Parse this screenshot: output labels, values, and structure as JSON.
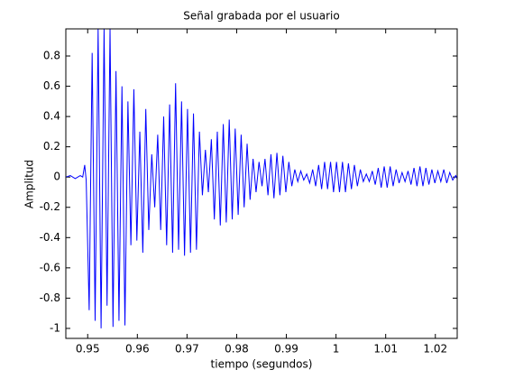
{
  "chart_data": {
    "type": "line",
    "title": "Señal grabada por el usuario",
    "xlabel": "tiempo (segundos)",
    "ylabel": "Amplitud",
    "color": "#0000ff",
    "grid": false,
    "xlim": [
      0.9456,
      1.0244
    ],
    "ylim": [
      -1.066,
      0.979
    ],
    "xticks": [
      0.95,
      0.96,
      0.97,
      0.98,
      0.99,
      1,
      1.01,
      1.02
    ],
    "yticks": [
      -1,
      -0.8,
      -0.6,
      -0.4,
      -0.2,
      0,
      0.2,
      0.4,
      0.6,
      0.8
    ],
    "x": [
      0.9456,
      0.9465,
      0.9475,
      0.9485,
      0.949,
      0.9494,
      0.9497,
      0.9503,
      0.9509,
      0.9515,
      0.9521,
      0.9527,
      0.9533,
      0.9539,
      0.9545,
      0.9551,
      0.9557,
      0.9563,
      0.9569,
      0.9575,
      0.9581,
      0.9587,
      0.9593,
      0.9599,
      0.9605,
      0.9611,
      0.9617,
      0.9623,
      0.9629,
      0.9635,
      0.9641,
      0.9647,
      0.9653,
      0.9659,
      0.9665,
      0.9671,
      0.9677,
      0.9683,
      0.9689,
      0.9695,
      0.9701,
      0.9707,
      0.9713,
      0.9719,
      0.9725,
      0.9731,
      0.9737,
      0.9743,
      0.9749,
      0.9755,
      0.9761,
      0.9767,
      0.9773,
      0.9779,
      0.9785,
      0.9791,
      0.9797,
      0.9803,
      0.9809,
      0.9815,
      0.9821,
      0.9827,
      0.9833,
      0.9839,
      0.9845,
      0.9851,
      0.9857,
      0.9863,
      0.9869,
      0.9875,
      0.9881,
      0.9887,
      0.9893,
      0.9899,
      0.9905,
      0.9911,
      0.9917,
      0.9923,
      0.9929,
      0.9935,
      0.9941,
      0.9947,
      0.9953,
      0.9959,
      0.9965,
      0.9971,
      0.9977,
      0.9983,
      0.9989,
      0.9995,
      1.0001,
      1.0007,
      1.0013,
      1.0019,
      1.0025,
      1.0031,
      1.0037,
      1.0043,
      1.0049,
      1.0055,
      1.0061,
      1.0067,
      1.0073,
      1.0079,
      1.0085,
      1.0091,
      1.0097,
      1.0103,
      1.0109,
      1.0115,
      1.0121,
      1.0127,
      1.0133,
      1.0139,
      1.0145,
      1.0151,
      1.0157,
      1.0163,
      1.0169,
      1.0175,
      1.0181,
      1.0187,
      1.0193,
      1.0199,
      1.0205,
      1.0211,
      1.0217,
      1.0223,
      1.0229,
      1.0235,
      1.0241,
      1.0244
    ],
    "values": [
      0,
      0.01,
      -0.01,
      0.01,
      0,
      0.08,
      -0.02,
      -0.88,
      0.82,
      -0.95,
      0.98,
      -1.0,
      0.98,
      -0.85,
      0.98,
      -0.99,
      0.7,
      -0.95,
      0.6,
      -0.98,
      0.5,
      -0.45,
      0.58,
      -0.42,
      0.3,
      -0.5,
      0.45,
      -0.35,
      0.15,
      -0.2,
      0.28,
      -0.35,
      0.4,
      -0.45,
      0.48,
      -0.5,
      0.62,
      -0.48,
      0.5,
      -0.52,
      0.45,
      -0.5,
      0.42,
      -0.48,
      0.3,
      -0.12,
      0.18,
      -0.1,
      0.25,
      -0.28,
      0.3,
      -0.32,
      0.35,
      -0.3,
      0.38,
      -0.28,
      0.32,
      -0.25,
      0.28,
      -0.2,
      0.22,
      -0.15,
      0.12,
      -0.1,
      0.1,
      -0.06,
      0.12,
      -0.12,
      0.15,
      -0.14,
      0.16,
      -0.12,
      0.14,
      -0.1,
      0.1,
      -0.06,
      0.05,
      -0.03,
      0.04,
      -0.02,
      0.02,
      -0.04,
      0.05,
      -0.06,
      0.08,
      -0.08,
      0.1,
      -0.08,
      0.1,
      -0.1,
      0.1,
      -0.1,
      0.1,
      -0.1,
      0.09,
      -0.08,
      0.08,
      -0.06,
      0.05,
      -0.03,
      0.02,
      -0.03,
      0.04,
      -0.05,
      0.06,
      -0.07,
      0.07,
      -0.07,
      0.07,
      -0.06,
      0.05,
      -0.04,
      0.03,
      -0.03,
      0.04,
      -0.05,
      0.06,
      -0.06,
      0.07,
      -0.06,
      0.06,
      -0.05,
      0.05,
      -0.04,
      0.04,
      -0.03,
      0.05,
      -0.04,
      0.03,
      -0.02,
      0.01,
      -0.01
    ]
  }
}
